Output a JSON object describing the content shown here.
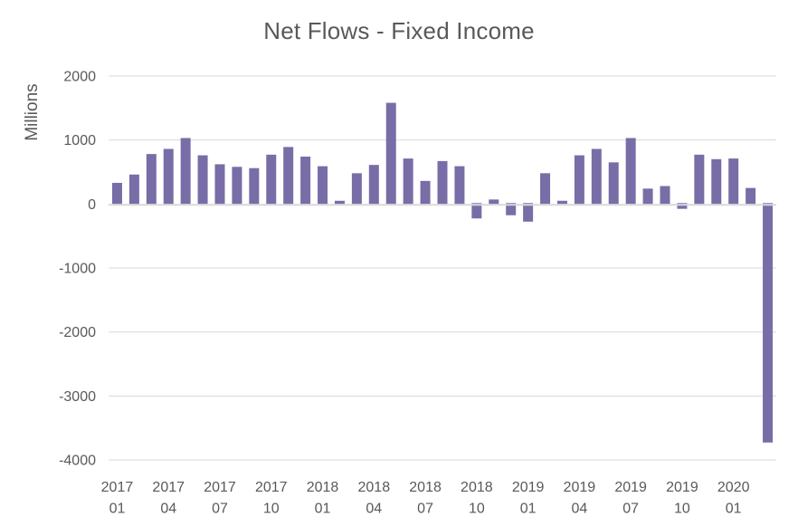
{
  "page": {
    "background": "#FFFFFF"
  },
  "chart_data": {
    "type": "bar",
    "title": "Net Flows - Fixed Income",
    "ylabel": "Millions",
    "xlabel": "",
    "legend": "none",
    "grid": "horizontal",
    "ylim": [
      -4000,
      2000
    ],
    "yticks": [
      2000,
      1000,
      0,
      -1000,
      -2000,
      -3000,
      -4000
    ],
    "x_tick_every": 3,
    "x_tick_labels": [
      {
        "year": "2017",
        "month": "01"
      },
      {
        "year": "2017",
        "month": "04"
      },
      {
        "year": "2017",
        "month": "07"
      },
      {
        "year": "2017",
        "month": "10"
      },
      {
        "year": "2018",
        "month": "01"
      },
      {
        "year": "2018",
        "month": "04"
      },
      {
        "year": "2018",
        "month": "07"
      },
      {
        "year": "2018",
        "month": "10"
      },
      {
        "year": "2019",
        "month": "01"
      },
      {
        "year": "2019",
        "month": "04"
      },
      {
        "year": "2019",
        "month": "07"
      },
      {
        "year": "2019",
        "month": "10"
      },
      {
        "year": "2020",
        "month": "01"
      }
    ],
    "categories": [
      "2017-01",
      "2017-02",
      "2017-03",
      "2017-04",
      "2017-05",
      "2017-06",
      "2017-07",
      "2017-08",
      "2017-09",
      "2017-10",
      "2017-11",
      "2017-12",
      "2018-01",
      "2018-02",
      "2018-03",
      "2018-04",
      "2018-05",
      "2018-06",
      "2018-07",
      "2018-08",
      "2018-09",
      "2018-10",
      "2018-11",
      "2018-12",
      "2019-01",
      "2019-02",
      "2019-03",
      "2019-04",
      "2019-05",
      "2019-06",
      "2019-07",
      "2019-08",
      "2019-09",
      "2019-10",
      "2019-11",
      "2019-12",
      "2020-01",
      "2020-02",
      "2020-03"
    ],
    "values": [
      330,
      460,
      780,
      860,
      1030,
      760,
      620,
      580,
      560,
      770,
      890,
      740,
      590,
      50,
      480,
      610,
      1580,
      710,
      360,
      670,
      590,
      -240,
      70,
      -190,
      -290,
      480,
      50,
      760,
      860,
      650,
      1030,
      240,
      280,
      -90,
      770,
      700,
      710,
      250,
      -3740
    ],
    "colors": {
      "bar": "#796DA7",
      "gridline": "#D9D9D9",
      "zero_line": "#D9D9D9",
      "text": "#595959"
    }
  }
}
